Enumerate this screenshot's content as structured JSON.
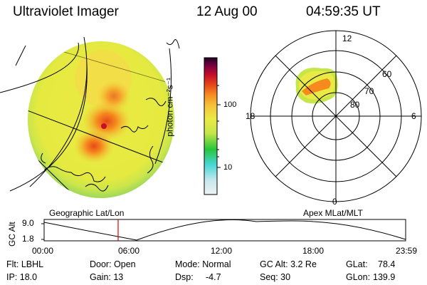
{
  "header": {
    "title": "Ultraviolet Imager",
    "date": "12 Aug 00",
    "time": "04:59:35 UT"
  },
  "colorbar": {
    "unit_label": "photon cm⁻²s⁻¹",
    "ticks": [
      "100",
      "10"
    ],
    "colors": [
      "#e6eaee",
      "#46d6d6",
      "#26c63a",
      "#c6e64a",
      "#eaea44",
      "#f6c43a",
      "#f68a1e",
      "#e64a1a",
      "#c8102a",
      "#7a0040",
      "#1e0022"
    ]
  },
  "polar_plot": {
    "ring_labels": [
      "60",
      "70",
      "80"
    ],
    "mlt_labels": [
      "12",
      "6",
      "0",
      "18"
    ]
  },
  "panel_labels": {
    "left": "Geographic Lat/Lon",
    "right": "Apex MLat/MLT"
  },
  "altitude_plot": {
    "axis_title": "GC Alt",
    "y_ticks": [
      "9.0",
      "1.8"
    ],
    "x_ticks": [
      "00:00",
      "06:00",
      "12:00",
      "18:00",
      "23:59"
    ],
    "current_time": "04:59"
  },
  "info": {
    "flt": "Flt: LBHL",
    "ip": "IP: 18.0",
    "door": "Door: Open",
    "gain": "Gain: 13",
    "mode": "Mode: Normal",
    "dsp_label": "Dsp:",
    "dsp_value": "-4.7",
    "gc_alt": "GC Alt: 3.2 Re",
    "seq": "Seq: 30",
    "glat_label": "GLat:",
    "glat_value": "78.4",
    "glon_label": "GLon:",
    "glon_value": "139.9"
  }
}
